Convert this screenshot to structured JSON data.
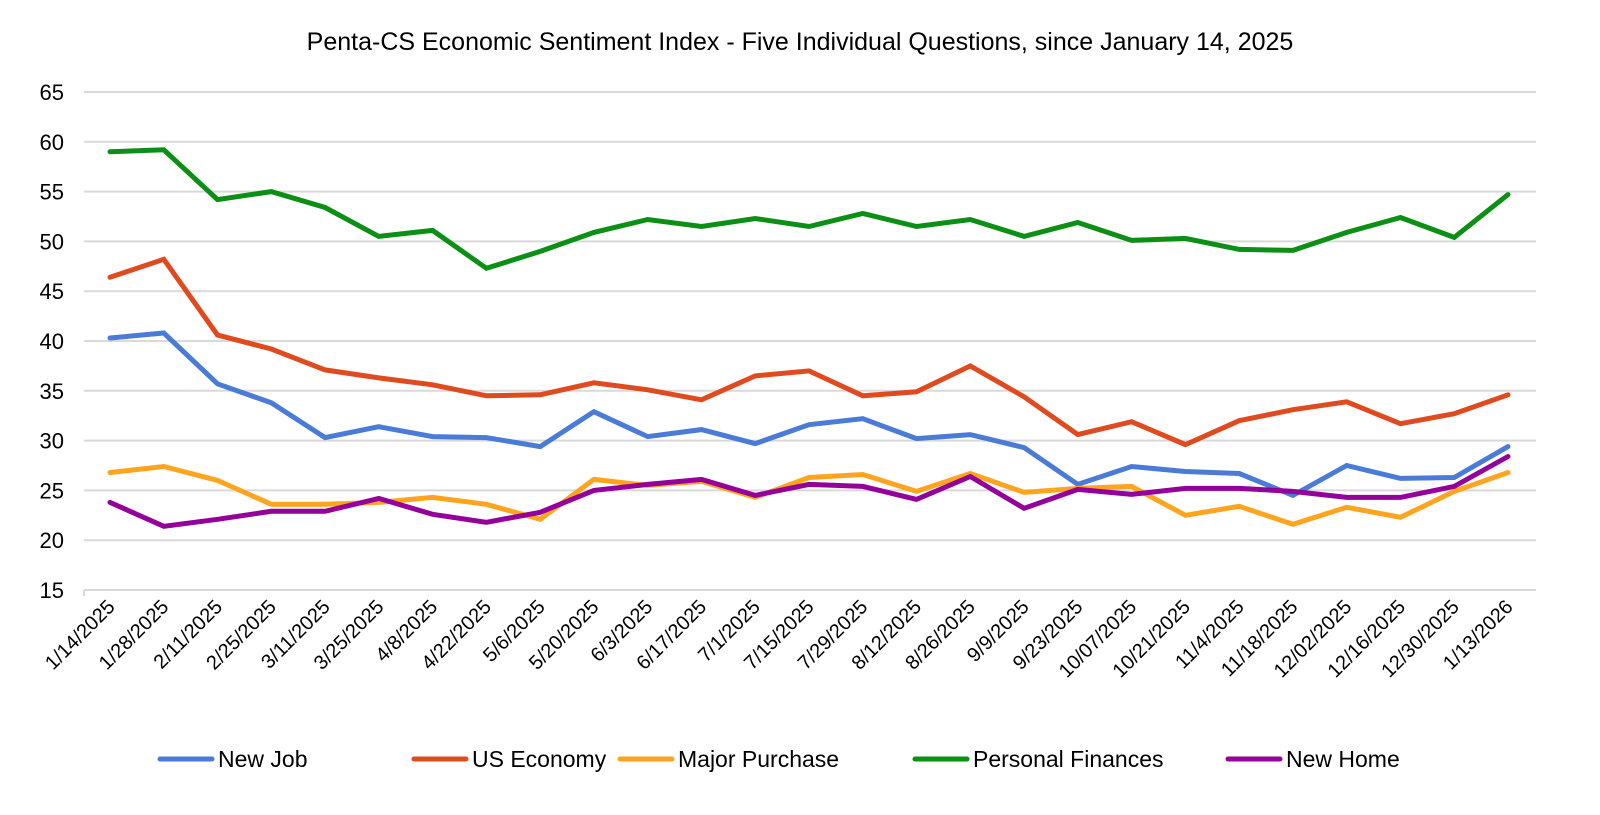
{
  "chart_data": {
    "type": "line",
    "title": "Penta-CS Economic Sentiment Index - Five Individual Questions, since January 14, 2025",
    "xlabel": "",
    "ylabel": "",
    "ylim": [
      15,
      65
    ],
    "yticks": [
      15,
      20,
      25,
      30,
      35,
      40,
      45,
      50,
      55,
      60,
      65
    ],
    "grid": true,
    "legend_position": "bottom",
    "categories": [
      "1/14/2025",
      "1/28/2025",
      "2/11/2025",
      "2/25/2025",
      "3/11/2025",
      "3/25/2025",
      "4/8/2025",
      "4/22/2025",
      "5/6/2025",
      "5/20/2025",
      "6/3/2025",
      "6/17/2025",
      "7/1/2025",
      "7/15/2025",
      "7/29/2025",
      "8/12/2025",
      "8/26/2025",
      "9/9/2025",
      "9/23/2025",
      "10/07/2025",
      "10/21/2025",
      "11/4/2025",
      "11/18/2025",
      "12/02/2025",
      "12/16/2025",
      "12/30/2025",
      "1/13/2026"
    ],
    "series": [
      {
        "name": "New Job",
        "color": "#4a7bd6",
        "values": [
          40.3,
          40.8,
          35.7,
          33.8,
          30.3,
          31.4,
          30.4,
          30.3,
          29.4,
          32.9,
          30.4,
          31.1,
          29.7,
          31.6,
          32.2,
          30.2,
          30.6,
          29.3,
          25.6,
          27.4,
          26.9,
          26.7,
          24.5,
          27.5,
          26.2,
          26.3,
          29.4
        ]
      },
      {
        "name": "US Economy",
        "color": "#e04a1f",
        "values": [
          46.4,
          48.2,
          40.6,
          39.2,
          37.1,
          36.3,
          35.6,
          34.5,
          34.6,
          35.8,
          35.1,
          34.1,
          36.5,
          37.0,
          34.5,
          34.9,
          37.5,
          34.4,
          30.6,
          31.9,
          29.6,
          32.0,
          33.1,
          33.9,
          31.7,
          32.7,
          34.6
        ]
      },
      {
        "name": "Major Purchase",
        "color": "#ffa41f",
        "values": [
          26.8,
          27.4,
          26.0,
          23.6,
          23.6,
          23.8,
          24.3,
          23.6,
          22.1,
          26.1,
          25.5,
          25.9,
          24.3,
          26.3,
          26.6,
          24.9,
          26.7,
          24.8,
          25.2,
          25.4,
          22.5,
          23.4,
          21.6,
          23.3,
          22.3,
          24.9,
          26.8
        ]
      },
      {
        "name": "Personal Finances",
        "color": "#0b8f14",
        "values": [
          59.0,
          59.2,
          54.2,
          55.0,
          53.4,
          50.5,
          51.1,
          47.3,
          49.0,
          50.9,
          52.2,
          51.5,
          52.3,
          51.5,
          52.8,
          51.5,
          52.2,
          50.5,
          51.9,
          50.1,
          50.3,
          49.2,
          49.1,
          50.9,
          52.4,
          50.4,
          54.7
        ]
      },
      {
        "name": "New Home",
        "color": "#94009a",
        "values": [
          23.8,
          21.4,
          22.1,
          22.9,
          22.9,
          24.2,
          22.6,
          21.8,
          22.8,
          25.0,
          25.6,
          26.1,
          24.5,
          25.6,
          25.4,
          24.1,
          26.4,
          23.2,
          25.1,
          24.6,
          25.2,
          25.2,
          24.9,
          24.3,
          24.3,
          25.4,
          28.4
        ]
      }
    ]
  }
}
